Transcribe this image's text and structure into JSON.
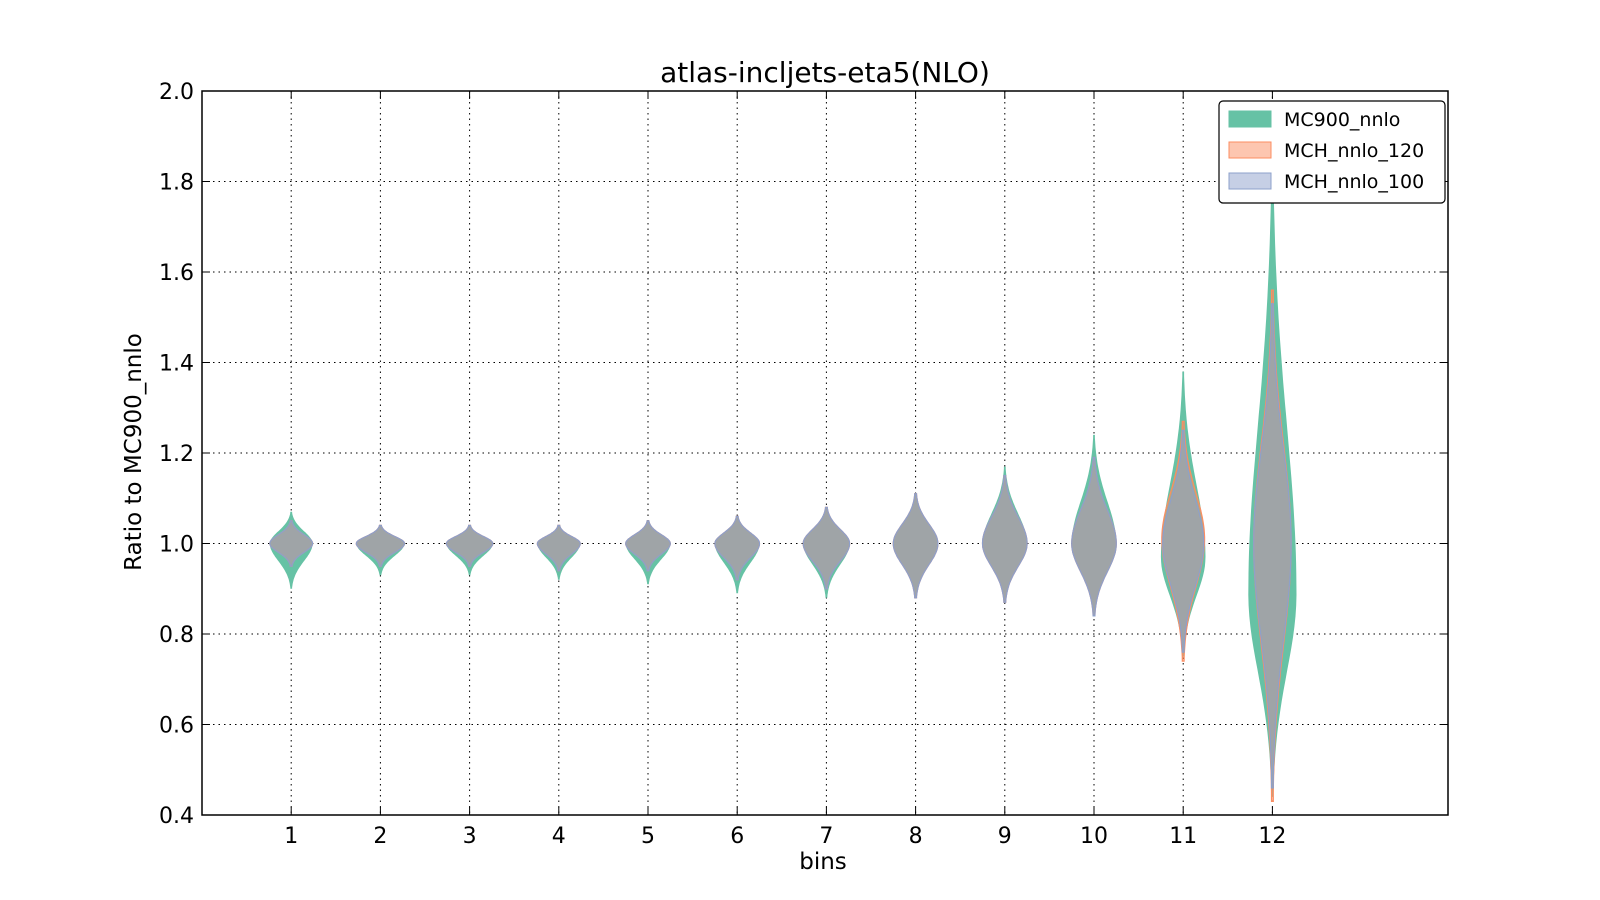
{
  "chart_data": {
    "type": "violin",
    "title": "atlas-incljets-eta5(NLO)",
    "xlabel": "bins",
    "ylabel": "Ratio to MC900_nnlo",
    "categories": [
      "1",
      "2",
      "3",
      "4",
      "5",
      "6",
      "7",
      "8",
      "9",
      "10",
      "11",
      "12"
    ],
    "yticks": [
      "0.4",
      "0.6",
      "0.8",
      "1.0",
      "1.2",
      "1.4",
      "1.6",
      "1.8",
      "2.0"
    ],
    "ylim": [
      0.4,
      2.0
    ],
    "grid": true,
    "legend_position": "top-right",
    "series": [
      {
        "name": "MC900_nnlo",
        "color": "#66c2a5",
        "bins": [
          {
            "min": 0.9,
            "max": 1.07,
            "center": 1.0,
            "halfwidth": 0.24
          },
          {
            "min": 0.93,
            "max": 1.04,
            "center": 1.0,
            "halfwidth": 0.27
          },
          {
            "min": 0.93,
            "max": 1.04,
            "center": 1.0,
            "halfwidth": 0.26
          },
          {
            "min": 0.92,
            "max": 1.04,
            "center": 1.0,
            "halfwidth": 0.24
          },
          {
            "min": 0.91,
            "max": 1.05,
            "center": 1.0,
            "halfwidth": 0.25
          },
          {
            "min": 0.89,
            "max": 1.06,
            "center": 1.0,
            "halfwidth": 0.25
          },
          {
            "min": 0.88,
            "max": 1.08,
            "center": 1.0,
            "halfwidth": 0.26
          },
          {
            "min": 0.88,
            "max": 1.11,
            "center": 1.0,
            "halfwidth": 0.25
          },
          {
            "min": 0.87,
            "max": 1.17,
            "center": 1.0,
            "halfwidth": 0.25
          },
          {
            "min": 0.84,
            "max": 1.24,
            "center": 1.0,
            "halfwidth": 0.25
          },
          {
            "min": 0.75,
            "max": 1.38,
            "center": 0.97,
            "halfwidth": 0.25
          },
          {
            "min": 0.44,
            "max": 1.85,
            "center": 0.89,
            "halfwidth": 0.27
          }
        ]
      },
      {
        "name": "MCH_nnlo_120",
        "color": "#fc8d62",
        "bins": [
          {
            "min": 0.95,
            "max": 1.05,
            "center": 1.0,
            "halfwidth": 0.24
          },
          {
            "min": 0.95,
            "max": 1.04,
            "center": 1.0,
            "halfwidth": 0.27
          },
          {
            "min": 0.95,
            "max": 1.04,
            "center": 1.0,
            "halfwidth": 0.26
          },
          {
            "min": 0.94,
            "max": 1.04,
            "center": 1.0,
            "halfwidth": 0.24
          },
          {
            "min": 0.94,
            "max": 1.05,
            "center": 1.0,
            "halfwidth": 0.25
          },
          {
            "min": 0.92,
            "max": 1.06,
            "center": 1.0,
            "halfwidth": 0.25
          },
          {
            "min": 0.9,
            "max": 1.08,
            "center": 1.0,
            "halfwidth": 0.26
          },
          {
            "min": 0.88,
            "max": 1.11,
            "center": 1.0,
            "halfwidth": 0.25
          },
          {
            "min": 0.87,
            "max": 1.15,
            "center": 1.0,
            "halfwidth": 0.25
          },
          {
            "min": 0.84,
            "max": 1.19,
            "center": 1.0,
            "halfwidth": 0.25
          },
          {
            "min": 0.74,
            "max": 1.27,
            "center": 1.01,
            "halfwidth": 0.24
          },
          {
            "min": 0.43,
            "max": 1.56,
            "center": 1.0,
            "halfwidth": 0.21
          }
        ]
      },
      {
        "name": "MCH_nnlo_100",
        "color": "#8da0cb",
        "bins": [
          {
            "min": 0.95,
            "max": 1.05,
            "center": 1.0,
            "halfwidth": 0.24
          },
          {
            "min": 0.95,
            "max": 1.04,
            "center": 1.0,
            "halfwidth": 0.27
          },
          {
            "min": 0.95,
            "max": 1.04,
            "center": 1.0,
            "halfwidth": 0.26
          },
          {
            "min": 0.94,
            "max": 1.04,
            "center": 1.0,
            "halfwidth": 0.24
          },
          {
            "min": 0.94,
            "max": 1.05,
            "center": 1.0,
            "halfwidth": 0.25
          },
          {
            "min": 0.92,
            "max": 1.06,
            "center": 1.0,
            "halfwidth": 0.25
          },
          {
            "min": 0.9,
            "max": 1.08,
            "center": 1.0,
            "halfwidth": 0.26
          },
          {
            "min": 0.88,
            "max": 1.11,
            "center": 1.0,
            "halfwidth": 0.25
          },
          {
            "min": 0.87,
            "max": 1.15,
            "center": 1.0,
            "halfwidth": 0.25
          },
          {
            "min": 0.84,
            "max": 1.19,
            "center": 1.0,
            "halfwidth": 0.25
          },
          {
            "min": 0.76,
            "max": 1.25,
            "center": 1.0,
            "halfwidth": 0.23
          },
          {
            "min": 0.46,
            "max": 1.53,
            "center": 1.0,
            "halfwidth": 0.21
          }
        ]
      }
    ]
  }
}
